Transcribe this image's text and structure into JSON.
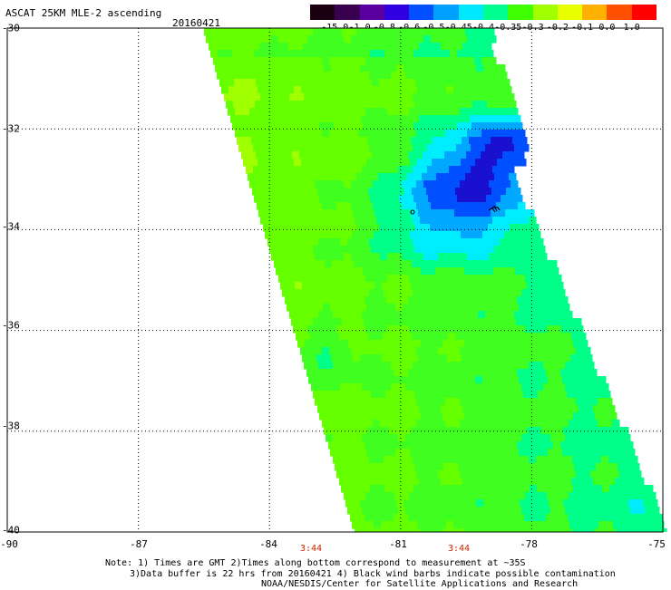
{
  "title": "ASCAT 25KM MLE-2 ascending",
  "date": "20160421",
  "colorbar": {
    "labels": [
      "-15.0",
      "-1.0",
      "-0.8",
      "-0.6",
      "-0.5",
      "-0.45",
      "-0.4",
      "-0.35",
      "-0.3",
      "-0.2",
      "-0.1",
      "0.0",
      "1.0"
    ],
    "colors": [
      "#1a0010",
      "#3a0050",
      "#5a00a0",
      "#3000e0",
      "#0050ff",
      "#00a0ff",
      "#00e8ff",
      "#00ff90",
      "#40ff00",
      "#a0ff00",
      "#e8ff00",
      "#ffb000",
      "#ff5000",
      "#ff0000"
    ]
  },
  "map": {
    "lat_labels": [
      "-30",
      "-32",
      "-34",
      "-36",
      "-38",
      "-40"
    ],
    "lon_labels": [
      "-90",
      "-87",
      "-84",
      "-81",
      "-78",
      "-75"
    ],
    "lat_range": [
      -40,
      -30
    ],
    "lon_range": [
      -90,
      -75
    ]
  },
  "times": [
    {
      "label": "3:44",
      "lon": -83.0
    },
    {
      "label": "3:44",
      "lon": -79.6
    }
  ],
  "notes": {
    "line1": "Note: 1) Times are GMT 2)Times along bottom correspond to measurement at ~35S",
    "line2": "3)Data buffer is 22 hrs from 20160421 4) Black wind barbs indicate possible contamination",
    "line3": "NOAA/NESDIS/Center for Satellite Applications and Research"
  }
}
